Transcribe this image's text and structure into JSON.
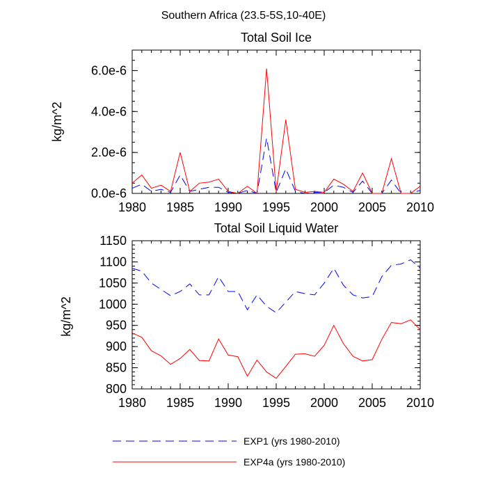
{
  "figure_title": "Southern Africa (23.5-5S,10-40E)",
  "legend": [
    {
      "label": "EXP1 (yrs 1980-2010)",
      "color": "#0000ff",
      "dash": "dashed"
    },
    {
      "label": "EXP4a (yrs 1980-2010)",
      "color": "#ff0000",
      "dash": "solid"
    }
  ],
  "chart_data": [
    {
      "type": "line",
      "title": "Total Soil Ice",
      "xlabel": "",
      "ylabel": "kg/m^2",
      "xlim": [
        1980,
        2010
      ],
      "ylim": [
        0,
        7e-06
      ],
      "x_ticks": [
        1980,
        1985,
        1990,
        1995,
        2000,
        2005,
        2010
      ],
      "x_tick_labels": [
        "1980",
        "1985",
        "1990",
        "1995",
        "2000",
        "2005",
        "2010"
      ],
      "y_ticks": [
        0,
        2e-06,
        4e-06,
        6e-06
      ],
      "y_tick_labels": [
        "0.0e-6",
        "2.0e-6",
        "4.0e-6",
        "6.0e-6"
      ],
      "x": [
        1980,
        1981,
        1982,
        1983,
        1984,
        1985,
        1986,
        1987,
        1988,
        1989,
        1990,
        1991,
        1992,
        1993,
        1994,
        1995,
        1996,
        1997,
        1998,
        1999,
        2000,
        2001,
        2002,
        2003,
        2004,
        2005,
        2006,
        2007,
        2008,
        2009,
        2010
      ],
      "series": [
        {
          "name": "EXP1 (yrs 1980-2010)",
          "color": "#0000ff",
          "dash": "dashed",
          "values": [
            2.5e-07,
            4.5e-07,
            1e-07,
            2e-07,
            5e-08,
            9e-07,
            1e-07,
            2e-07,
            3e-07,
            3e-07,
            5e-08,
            0.0,
            1.5e-07,
            0.0,
            2.7e-06,
            5e-08,
            1.2e-06,
            1e-07,
            0.0,
            5e-08,
            5e-08,
            4e-07,
            3e-07,
            5e-08,
            6e-07,
            0.0,
            0.0,
            6.5e-07,
            0.0,
            0.0,
            1.5e-07
          ]
        },
        {
          "name": "EXP4a (yrs 1980-2010)",
          "color": "#ff0000",
          "dash": "solid",
          "values": [
            5e-07,
            9e-07,
            2.5e-07,
            4e-07,
            1e-07,
            2e-06,
            1e-07,
            5e-07,
            5.5e-07,
            7e-07,
            1e-07,
            0.0,
            3.5e-07,
            0.0,
            6.1e-06,
            1e-07,
            3.6e-06,
            2e-07,
            5e-08,
            1e-07,
            5e-08,
            7e-07,
            4.5e-07,
            1e-07,
            1e-06,
            0.0,
            0.0,
            1.7e-06,
            0.0,
            0.0,
            3.5e-07
          ]
        }
      ]
    },
    {
      "type": "line",
      "title": "Total Soil Liquid Water",
      "xlabel": "",
      "ylabel": "kg/m^2",
      "xlim": [
        1980,
        2010
      ],
      "ylim": [
        800,
        1150
      ],
      "x_ticks": [
        1980,
        1985,
        1990,
        1995,
        2000,
        2005,
        2010
      ],
      "x_tick_labels": [
        "1980",
        "1985",
        "1990",
        "1995",
        "2000",
        "2005",
        "2010"
      ],
      "y_ticks": [
        800,
        850,
        900,
        950,
        1000,
        1050,
        1100,
        1150
      ],
      "y_tick_labels": [
        "800",
        "850",
        "900",
        "950",
        "1000",
        "1050",
        "1100",
        "1150"
      ],
      "x": [
        1980,
        1981,
        1982,
        1983,
        1984,
        1985,
        1986,
        1987,
        1988,
        1989,
        1990,
        1991,
        1992,
        1993,
        1994,
        1995,
        1996,
        1997,
        1998,
        1999,
        2000,
        2001,
        2002,
        2003,
        2004,
        2005,
        2006,
        2007,
        2008,
        2009,
        2010
      ],
      "series": [
        {
          "name": "EXP1 (yrs 1980-2010)",
          "color": "#0000ff",
          "dash": "dashed",
          "values": [
            1085,
            1078,
            1050,
            1035,
            1020,
            1030,
            1048,
            1022,
            1022,
            1065,
            1030,
            1030,
            987,
            1022,
            995,
            980,
            1005,
            1030,
            1025,
            1022,
            1050,
            1085,
            1045,
            1022,
            1015,
            1018,
            1065,
            1092,
            1095,
            1105,
            1085
          ]
        },
        {
          "name": "EXP4a (yrs 1980-2010)",
          "color": "#ff0000",
          "dash": "solid",
          "values": [
            932,
            922,
            890,
            878,
            858,
            872,
            893,
            867,
            866,
            918,
            880,
            876,
            830,
            868,
            840,
            825,
            853,
            882,
            883,
            877,
            903,
            950,
            907,
            877,
            866,
            869,
            917,
            957,
            954,
            963,
            940
          ]
        }
      ]
    }
  ]
}
